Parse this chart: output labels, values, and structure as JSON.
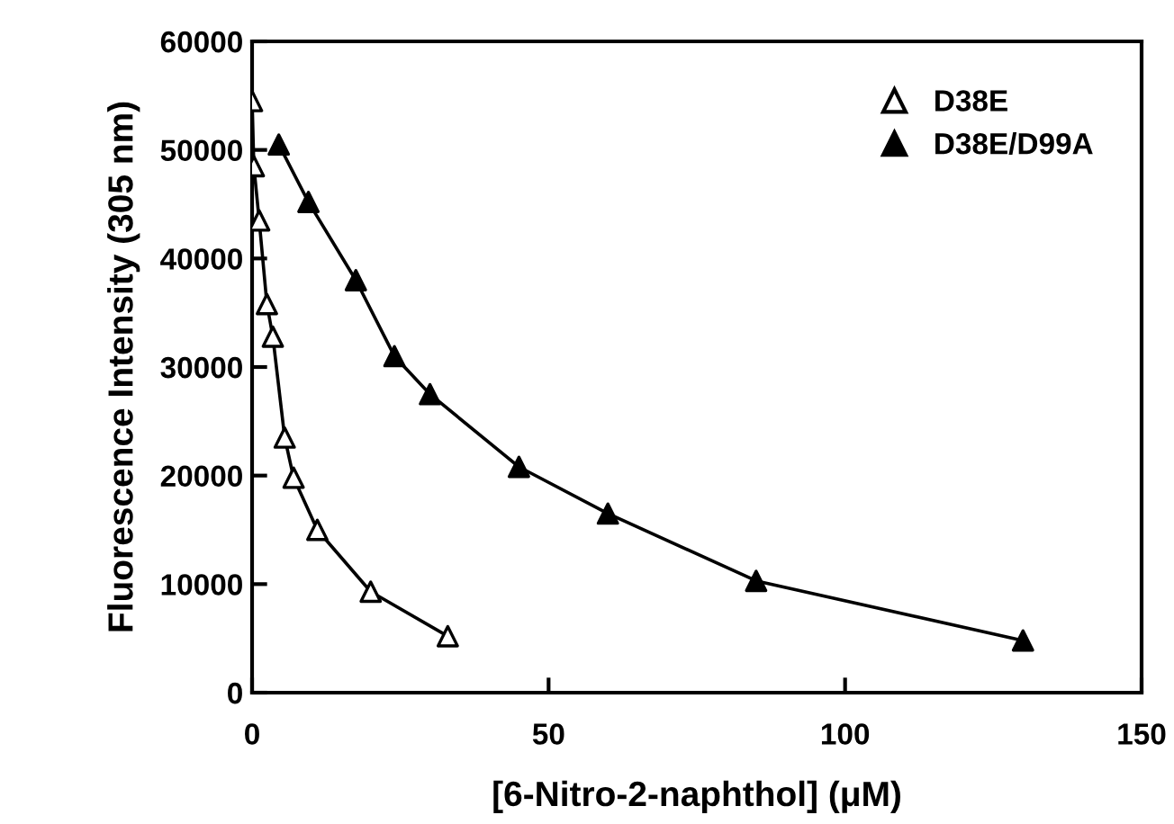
{
  "chart_data": {
    "type": "scatter",
    "xlabel": "[6-Nitro-2-naphthol] (μM)",
    "ylabel": "Fluorescence Intensity (305 nm)",
    "xlim": [
      0,
      150
    ],
    "xticks": [
      0,
      50,
      100,
      150
    ],
    "ylim": [
      0,
      60000
    ],
    "yticks": [
      0,
      10000,
      20000,
      30000,
      40000,
      50000,
      60000
    ],
    "grid": false,
    "legend": "top right",
    "marker": "triangle",
    "series": [
      {
        "name": "D38E",
        "color": "#ffffff",
        "x": [
          0,
          0.3,
          1.2,
          2.5,
          3.5,
          5.5,
          7,
          11,
          20,
          33
        ],
        "values": [
          54500,
          48500,
          43500,
          35800,
          32800,
          23500,
          19800,
          15000,
          9300,
          5200
        ]
      },
      {
        "name": "D38E/D99A",
        "color": "#000000",
        "x": [
          4.5,
          9.5,
          17.5,
          24,
          30,
          45,
          60,
          85,
          130
        ],
        "values": [
          50500,
          45200,
          38000,
          31000,
          27500,
          20800,
          16500,
          10300,
          4800
        ]
      },
      {
        "type": "line",
        "marker": "none",
        "color": "#000000",
        "x": [
          0,
          0.3,
          1.2,
          2.5,
          3.5,
          5.5,
          7,
          11,
          20,
          33
        ],
        "values": [
          54500,
          48500,
          43500,
          35800,
          32800,
          23500,
          19800,
          15000,
          9300,
          5200
        ]
      },
      {
        "type": "line",
        "marker": "none",
        "color": "#000000",
        "x": [
          4.5,
          9.5,
          17.5,
          24,
          30,
          45,
          60,
          85,
          130
        ],
        "values": [
          50500,
          45200,
          38000,
          31000,
          27500,
          20800,
          16500,
          10300,
          4800
        ]
      }
    ]
  }
}
